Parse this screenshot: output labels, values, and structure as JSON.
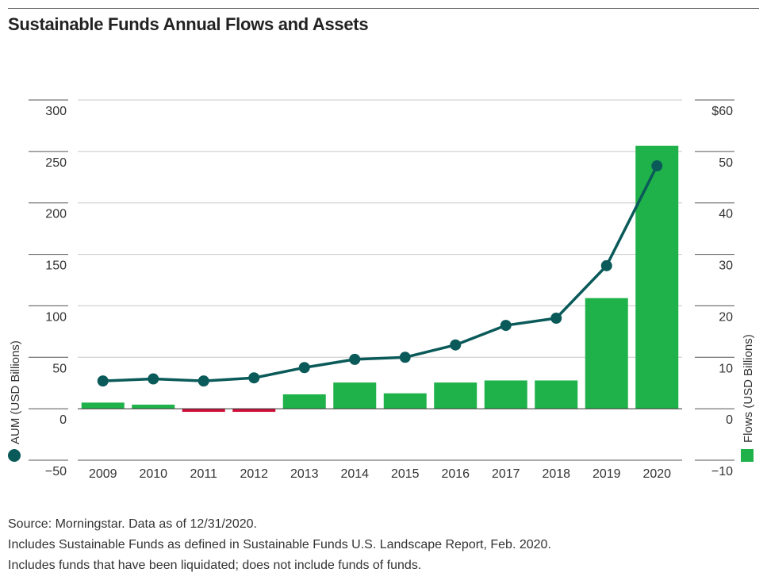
{
  "title": "Sustainable Funds Annual Flows and Assets",
  "notes": {
    "source": "Source: Morningstar. Data as of 12/31/2020.",
    "line2": "Includes Sustainable Funds as defined in Sustainable Funds U.S. Landscape Report, Feb. 2020.",
    "line3": "Includes funds that have been liquidated; does not include funds of funds."
  },
  "chart_data": {
    "type": "bar+line",
    "categories": [
      "2009",
      "2010",
      "2011",
      "2012",
      "2013",
      "2014",
      "2015",
      "2016",
      "2017",
      "2018",
      "2019",
      "2020"
    ],
    "series": [
      {
        "name": "AUM (USD Billions)",
        "type": "line",
        "axis": "left",
        "values": [
          27,
          29,
          27,
          30,
          40,
          48,
          50,
          62,
          81,
          88,
          139,
          236
        ]
      },
      {
        "name": "Flows (USD Billions)",
        "type": "bar",
        "axis": "right",
        "values": [
          1.2,
          0.8,
          -0.6,
          -0.6,
          2.8,
          5.1,
          3.0,
          5.1,
          5.5,
          5.5,
          21.5,
          51.1
        ]
      }
    ],
    "left_axis": {
      "label": "AUM (USD Billions)",
      "ylim": [
        -50,
        300
      ],
      "ticks": [
        300,
        250,
        200,
        150,
        100,
        50,
        0,
        -50
      ],
      "tick_labels": [
        "300",
        "250",
        "200",
        "150",
        "100",
        "50",
        "0",
        "−50"
      ]
    },
    "right_axis": {
      "label": "Flows (USD Billions)",
      "ylim": [
        -10,
        60
      ],
      "ticks": [
        60,
        50,
        40,
        30,
        20,
        10,
        0,
        -10
      ],
      "tick_labels": [
        "$60",
        "50",
        "40",
        "30",
        "20",
        "10",
        "0",
        "−10"
      ]
    },
    "grid": true,
    "colors": {
      "line": "#0b5a5a",
      "bar_positive": "#1fb24a",
      "bar_negative": "#d0103a",
      "grid": "#c8c8c8",
      "axis": "#555555"
    }
  }
}
